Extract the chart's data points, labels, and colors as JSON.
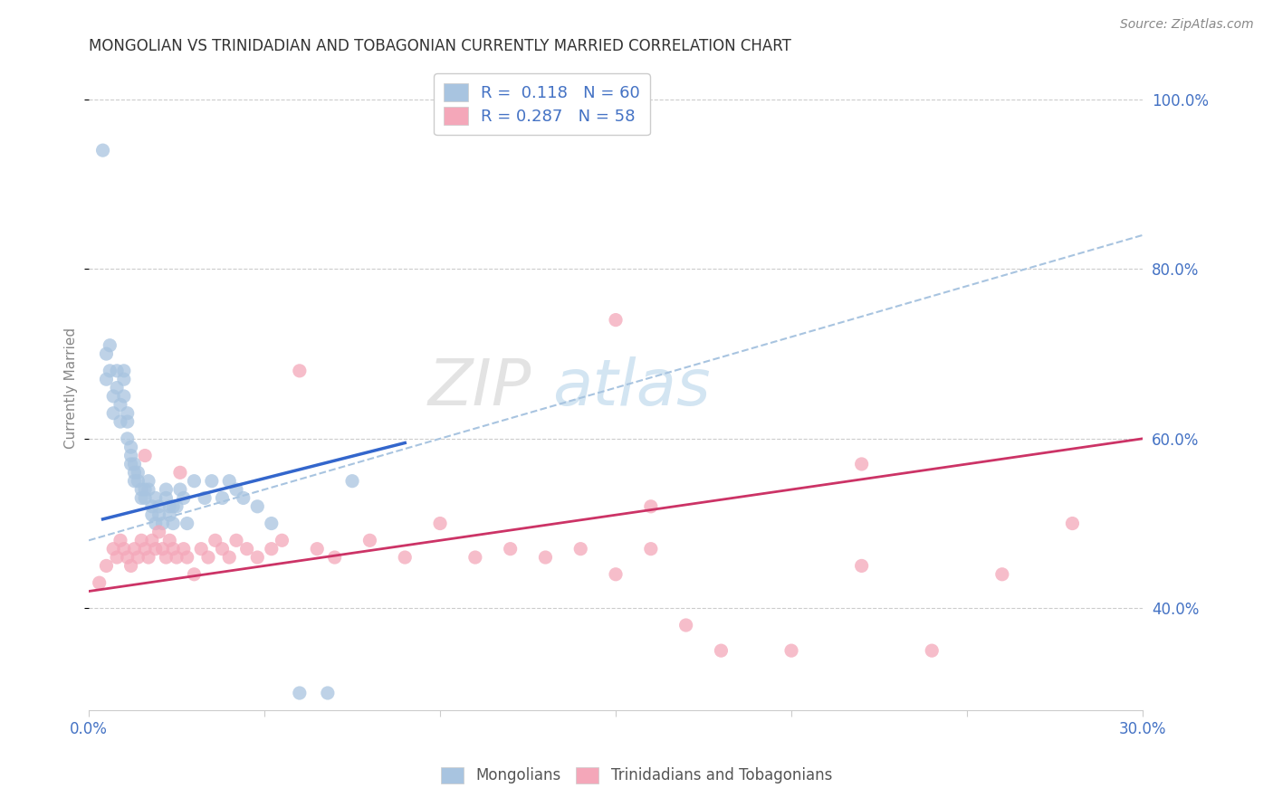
{
  "title": "MONGOLIAN VS TRINIDADIAN AND TOBAGONIAN CURRENTLY MARRIED CORRELATION CHART",
  "source": "Source: ZipAtlas.com",
  "ylabel": "Currently Married",
  "xlim": [
    0.0,
    0.3
  ],
  "ylim": [
    0.28,
    1.04
  ],
  "yticks": [
    0.4,
    0.6,
    0.8,
    1.0
  ],
  "ytick_labels": [
    "40.0%",
    "60.0%",
    "80.0%",
    "100.0%"
  ],
  "xticks": [
    0.0,
    0.05,
    0.1,
    0.15,
    0.2,
    0.25,
    0.3
  ],
  "xtick_labels": [
    "0.0%",
    "",
    "",
    "",
    "",
    "",
    "30.0%"
  ],
  "mongolian_color": "#a8c4e0",
  "trinidadian_color": "#f4a7b9",
  "trend_mongolian_color": "#3366cc",
  "trend_trinidadian_color": "#cc3366",
  "dashed_line_color": "#a8c4e0",
  "legend_text_color": "#4472c4",
  "watermark_zip": "ZIP",
  "watermark_atlas": "atlas",
  "R_mongolian": 0.118,
  "N_mongolian": 60,
  "R_trinidadian": 0.287,
  "N_trinidadian": 58,
  "mongolian_x": [
    0.004,
    0.005,
    0.005,
    0.006,
    0.006,
    0.007,
    0.007,
    0.008,
    0.008,
    0.009,
    0.009,
    0.01,
    0.01,
    0.01,
    0.011,
    0.011,
    0.011,
    0.012,
    0.012,
    0.012,
    0.013,
    0.013,
    0.013,
    0.014,
    0.014,
    0.015,
    0.015,
    0.016,
    0.016,
    0.017,
    0.017,
    0.018,
    0.018,
    0.019,
    0.019,
    0.02,
    0.02,
    0.021,
    0.022,
    0.022,
    0.023,
    0.023,
    0.024,
    0.024,
    0.025,
    0.026,
    0.027,
    0.028,
    0.03,
    0.033,
    0.035,
    0.038,
    0.04,
    0.042,
    0.044,
    0.048,
    0.052,
    0.06,
    0.068,
    0.075
  ],
  "mongolian_y": [
    0.94,
    0.7,
    0.67,
    0.71,
    0.68,
    0.65,
    0.63,
    0.68,
    0.66,
    0.64,
    0.62,
    0.68,
    0.67,
    0.65,
    0.63,
    0.62,
    0.6,
    0.59,
    0.58,
    0.57,
    0.57,
    0.56,
    0.55,
    0.56,
    0.55,
    0.54,
    0.53,
    0.54,
    0.53,
    0.55,
    0.54,
    0.52,
    0.51,
    0.53,
    0.5,
    0.52,
    0.51,
    0.5,
    0.54,
    0.53,
    0.52,
    0.51,
    0.52,
    0.5,
    0.52,
    0.54,
    0.53,
    0.5,
    0.55,
    0.53,
    0.55,
    0.53,
    0.55,
    0.54,
    0.53,
    0.52,
    0.5,
    0.3,
    0.3,
    0.55
  ],
  "trinidadian_x": [
    0.003,
    0.005,
    0.007,
    0.008,
    0.009,
    0.01,
    0.011,
    0.012,
    0.013,
    0.014,
    0.015,
    0.016,
    0.016,
    0.017,
    0.018,
    0.019,
    0.02,
    0.021,
    0.022,
    0.023,
    0.024,
    0.025,
    0.026,
    0.027,
    0.028,
    0.03,
    0.032,
    0.034,
    0.036,
    0.038,
    0.04,
    0.042,
    0.045,
    0.048,
    0.052,
    0.055,
    0.06,
    0.065,
    0.07,
    0.08,
    0.09,
    0.1,
    0.11,
    0.12,
    0.13,
    0.14,
    0.15,
    0.16,
    0.17,
    0.18,
    0.2,
    0.22,
    0.24,
    0.26,
    0.15,
    0.16,
    0.22,
    0.28
  ],
  "trinidadian_y": [
    0.43,
    0.45,
    0.47,
    0.46,
    0.48,
    0.47,
    0.46,
    0.45,
    0.47,
    0.46,
    0.48,
    0.58,
    0.47,
    0.46,
    0.48,
    0.47,
    0.49,
    0.47,
    0.46,
    0.48,
    0.47,
    0.46,
    0.56,
    0.47,
    0.46,
    0.44,
    0.47,
    0.46,
    0.48,
    0.47,
    0.46,
    0.48,
    0.47,
    0.46,
    0.47,
    0.48,
    0.68,
    0.47,
    0.46,
    0.48,
    0.46,
    0.5,
    0.46,
    0.47,
    0.46,
    0.47,
    0.44,
    0.47,
    0.38,
    0.35,
    0.35,
    0.45,
    0.35,
    0.44,
    0.74,
    0.52,
    0.57,
    0.5
  ]
}
